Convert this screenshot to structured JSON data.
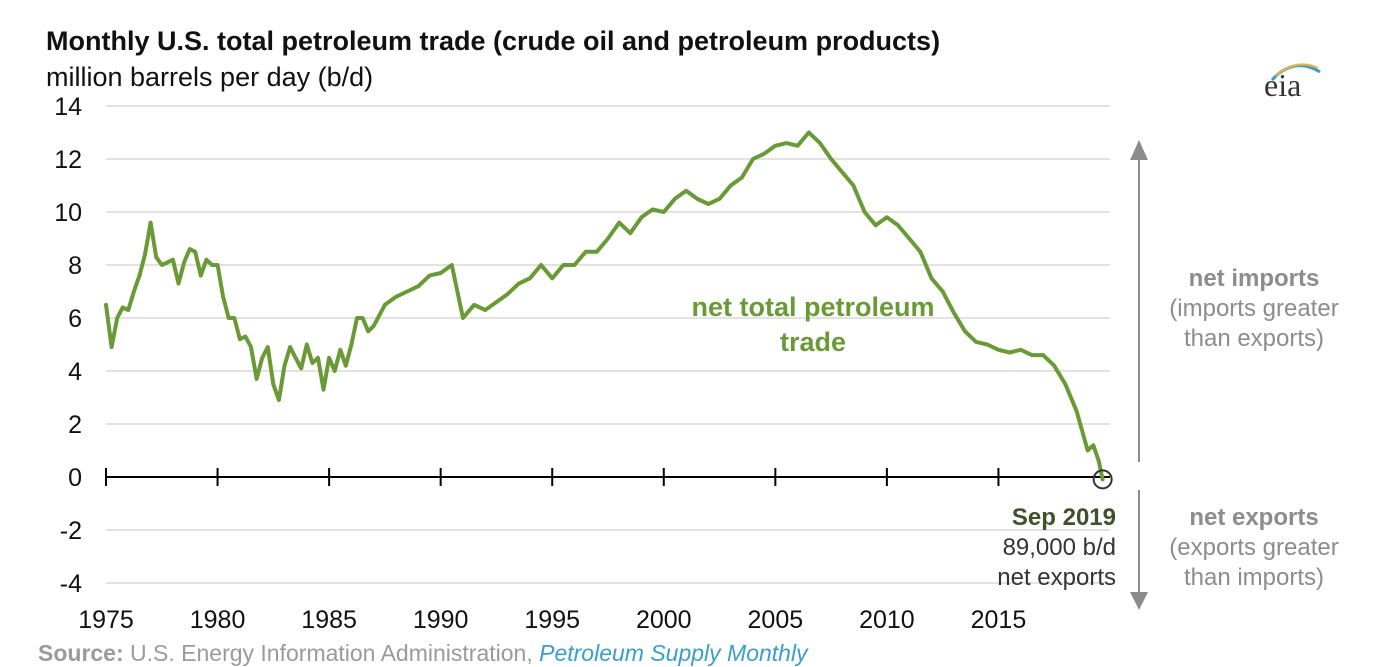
{
  "title": "Monthly U.S. total petroleum trade (crude oil and petroleum products)",
  "subtitle": "million barrels per day (b/d)",
  "logo_text": "eia",
  "source": {
    "label": "Source:",
    "text": " U.S. Energy Information Administration, ",
    "publication": "Petroleum Supply Monthly"
  },
  "side_labels": {
    "imports_head": "net imports",
    "imports_line1": "(imports greater",
    "imports_line2": "than exports)",
    "exports_head": "net exports",
    "exports_line1": "(exports greater",
    "exports_line2": "than imports)"
  },
  "annotation": {
    "date": "Sep 2019",
    "value": "89,000 b/d",
    "desc": "net exports"
  },
  "colors": {
    "series": "#6a9a36",
    "grid": "#d9d9d9",
    "axis": "#000000",
    "arrow": "#8c8c8c",
    "source_link": "#3a9ecb"
  },
  "chart_data": {
    "type": "line",
    "title": "Monthly U.S. total petroleum trade (crude oil and petroleum products)",
    "ylabel": "million barrels per day (b/d)",
    "xlabel": "",
    "ylim": [
      -4,
      14
    ],
    "yticks": [
      14,
      12,
      10,
      8,
      6,
      4,
      2,
      0,
      -2,
      -4
    ],
    "ytick_labels": [
      "14",
      "12",
      "10",
      "8",
      "6",
      "4",
      "2",
      "0",
      "-2",
      "-4"
    ],
    "xlim": [
      1975,
      2020
    ],
    "xticks": [
      1975,
      1980,
      1985,
      1990,
      1995,
      2000,
      2005,
      2010,
      2015
    ],
    "xtick_labels": [
      "1975",
      "1980",
      "1985",
      "1990",
      "1995",
      "2000",
      "2005",
      "2010",
      "2015"
    ],
    "grid": "horizontal",
    "series": [
      {
        "name": "net total petroleum trade",
        "x": [
          1975.0,
          1975.25,
          1975.5,
          1975.75,
          1976.0,
          1976.25,
          1976.5,
          1976.75,
          1977.0,
          1977.25,
          1977.5,
          1977.75,
          1978.0,
          1978.25,
          1978.5,
          1978.75,
          1979.0,
          1979.25,
          1979.5,
          1979.75,
          1980.0,
          1980.25,
          1980.5,
          1980.75,
          1981.0,
          1981.25,
          1981.5,
          1981.75,
          1982.0,
          1982.25,
          1982.5,
          1982.75,
          1983.0,
          1983.25,
          1983.5,
          1983.75,
          1984.0,
          1984.25,
          1984.5,
          1984.75,
          1985.0,
          1985.25,
          1985.5,
          1985.75,
          1986.0,
          1986.25,
          1986.5,
          1986.75,
          1987.0,
          1987.5,
          1988.0,
          1988.5,
          1989.0,
          1989.5,
          1990.0,
          1990.5,
          1991.0,
          1991.5,
          1992.0,
          1992.5,
          1993.0,
          1993.5,
          1994.0,
          1994.5,
          1995.0,
          1995.5,
          1996.0,
          1996.5,
          1997.0,
          1997.5,
          1998.0,
          1998.5,
          1999.0,
          1999.5,
          2000.0,
          2000.5,
          2001.0,
          2001.5,
          2002.0,
          2002.5,
          2003.0,
          2003.5,
          2004.0,
          2004.5,
          2005.0,
          2005.5,
          2006.0,
          2006.5,
          2007.0,
          2007.5,
          2008.0,
          2008.5,
          2009.0,
          2009.5,
          2010.0,
          2010.5,
          2011.0,
          2011.5,
          2012.0,
          2012.5,
          2013.0,
          2013.5,
          2014.0,
          2014.5,
          2015.0,
          2015.5,
          2016.0,
          2016.5,
          2017.0,
          2017.5,
          2018.0,
          2018.5,
          2019.0,
          2019.25,
          2019.5,
          2019.67
        ],
        "values": [
          6.5,
          4.9,
          6.0,
          6.4,
          6.3,
          7.0,
          7.6,
          8.4,
          9.6,
          8.3,
          8.0,
          8.1,
          8.2,
          7.3,
          8.1,
          8.6,
          8.5,
          7.6,
          8.2,
          8.0,
          8.0,
          6.8,
          6.0,
          6.0,
          5.2,
          5.3,
          4.9,
          3.7,
          4.5,
          4.9,
          3.5,
          2.9,
          4.2,
          4.9,
          4.5,
          4.1,
          5.0,
          4.3,
          4.5,
          3.3,
          4.5,
          4.0,
          4.8,
          4.2,
          5.0,
          6.0,
          6.0,
          5.5,
          5.7,
          6.5,
          6.8,
          7.0,
          7.2,
          7.6,
          7.7,
          8.0,
          6.0,
          6.5,
          6.3,
          6.6,
          6.9,
          7.3,
          7.5,
          8.0,
          7.5,
          8.0,
          8.0,
          8.5,
          8.5,
          9.0,
          9.6,
          9.2,
          9.8,
          10.1,
          10.0,
          10.5,
          10.8,
          10.5,
          10.3,
          10.5,
          11.0,
          11.3,
          12.0,
          12.2,
          12.5,
          12.6,
          12.5,
          13.0,
          12.6,
          12.0,
          11.5,
          11.0,
          10.0,
          9.5,
          9.8,
          9.5,
          9.0,
          8.5,
          7.5,
          7.0,
          6.2,
          5.5,
          5.1,
          5.0,
          4.8,
          4.7,
          4.8,
          4.6,
          4.6,
          4.2,
          3.5,
          2.5,
          1.0,
          1.2,
          0.6,
          -0.089
        ]
      }
    ],
    "annotations": [
      "net total petroleum trade",
      "Sep 2019",
      "89,000 b/d",
      "net exports",
      "net imports",
      "(imports greater",
      "than exports)",
      "net exports",
      "(exports greater",
      "than imports)"
    ]
  }
}
